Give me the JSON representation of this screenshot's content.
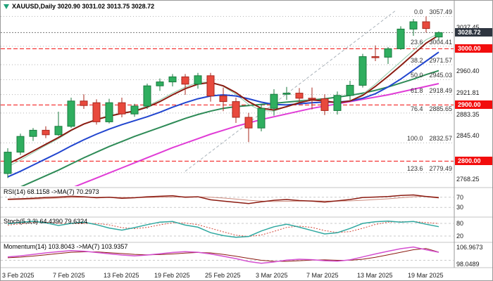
{
  "window": {
    "title": "XAUUSD,Daily 3020.90 3031.02 3013.75 3028.72"
  },
  "colors": {
    "up_fill": "#2fae5f",
    "up_stroke": "#187a3e",
    "down_fill": "#e8493d",
    "down_stroke": "#a8271d",
    "ma_fast": "#8b1a10",
    "ma_mid": "#2145cf",
    "ma_slow": "#2e8b57",
    "ma_long": "#e03cd6",
    "ma_teal": "#8fcbaa",
    "trendline": "#a9b2ba",
    "level_line": "#f20d0d",
    "level_badge": "#f20d0d",
    "current_badge": "#2e3540",
    "fib_line": "#b3b3b3",
    "rsi_line": "#8b1a10",
    "rsi_ma": "#cc8a7d",
    "stoch_main": "#2fa8a0",
    "stoch_signal": "#d24a3c",
    "mom_main": "#d44fd0",
    "mom_ma": "#8b1a10",
    "separator": "#c6c6c6",
    "axis_text": "#1a1a1a"
  },
  "panels": {
    "main": {
      "header": "XAUUSD,Daily 3020.90 3031.02 3013.75 3028.72",
      "y_ticks": [
        "3037.45",
        "2960.40",
        "2921.81",
        "2883.35",
        "2845.40",
        "2768.25"
      ],
      "current_price_badge": "3028.72",
      "level_badges": [
        "3000.00",
        "2900.00",
        "2800.00"
      ],
      "fib_labels": [
        {
          "ratio": "0.0",
          "price": "3057.49"
        },
        {
          "ratio": "23.6",
          "price": "3004.41"
        },
        {
          "ratio": "38.2",
          "price": "2971.57"
        },
        {
          "ratio": "50.0",
          "price": "2945.03"
        },
        {
          "ratio": "61.8",
          "price": "2918.49"
        },
        {
          "ratio": "76.4",
          "price": "2885.65"
        },
        {
          "ratio": "100.0",
          "price": "2832.57"
        },
        {
          "ratio": "123.6",
          "price": "2779.49"
        }
      ]
    },
    "rsi": {
      "header": "RSI(14) 68.1158 ->MA(7) 70.2973",
      "axis_labels": [
        "70",
        "30"
      ],
      "levels": [
        70,
        30
      ]
    },
    "stoch": {
      "header": "Stoch(5,3,3) 64.4390 79.6324",
      "axis_labels": [
        "80",
        "20"
      ],
      "levels": [
        80,
        20
      ]
    },
    "momentum": {
      "header": "Momentum(14) 103.8043 ->MA(7) 103.9357",
      "axis_labels": [
        "106.9673",
        "98.0489"
      ],
      "levels": [
        100
      ]
    }
  },
  "time_axis": {
    "labels": [
      {
        "index": 0,
        "text": "3 Feb 2025"
      },
      {
        "index": 4,
        "text": "7 Feb 2025"
      },
      {
        "index": 8,
        "text": "13 Feb 2025"
      },
      {
        "index": 12,
        "text": "19 Feb 2025"
      },
      {
        "index": 16,
        "text": "25 Feb 2025"
      },
      {
        "index": 20,
        "text": "3 Mar 2025"
      },
      {
        "index": 24,
        "text": "7 Mar 2025"
      },
      {
        "index": 28,
        "text": "13 Mar 2025"
      },
      {
        "index": 32,
        "text": "19 Mar 2025"
      }
    ]
  },
  "chart_data": [
    {
      "type": "candlestick",
      "title": "XAUUSD Daily",
      "ohlc_current": {
        "open": 3020.9,
        "high": 3031.02,
        "low": 3013.75,
        "close": 3028.72
      },
      "ylim": [
        2758,
        3068
      ],
      "current_price": 3028.72,
      "horizontal_levels": [
        3000,
        2900,
        2800
      ],
      "fib": {
        "high": 3057.49,
        "low": 2832.57
      },
      "trendline": {
        "from_index": 14,
        "from_price": 2782,
        "to_index": 30.6,
        "to_price": 3068
      },
      "candles": [
        [
          2778,
          2823,
          2770,
          2816
        ],
        [
          2816,
          2849,
          2811,
          2844
        ],
        [
          2844,
          2859,
          2836,
          2855
        ],
        [
          2855,
          2862,
          2841,
          2847
        ],
        [
          2847,
          2888,
          2845,
          2862
        ],
        [
          2862,
          2913,
          2859,
          2907
        ],
        [
          2907,
          2919,
          2893,
          2899
        ],
        [
          2904,
          2910,
          2865,
          2870
        ],
        [
          2870,
          2911,
          2867,
          2904
        ],
        [
          2904,
          2913,
          2878,
          2884
        ],
        [
          2884,
          2902,
          2879,
          2898
        ],
        [
          2898,
          2938,
          2893,
          2934
        ],
        [
          2934,
          2947,
          2925,
          2941
        ],
        [
          2941,
          2955,
          2933,
          2950
        ],
        [
          2950,
          2955,
          2918,
          2937
        ],
        [
          2937,
          2957,
          2929,
          2952
        ],
        [
          2952,
          2957,
          2906,
          2916
        ],
        [
          2916,
          2931,
          2889,
          2906
        ],
        [
          2906,
          2913,
          2868,
          2878
        ],
        [
          2878,
          2886,
          2834,
          2859
        ],
        [
          2859,
          2901,
          2853,
          2894
        ],
        [
          2894,
          2928,
          2881,
          2919
        ],
        [
          2919,
          2932,
          2909,
          2921
        ],
        [
          2921,
          2930,
          2903,
          2912
        ],
        [
          2912,
          2931,
          2892,
          2911
        ],
        [
          2911,
          2919,
          2882,
          2890
        ],
        [
          2890,
          2924,
          2883,
          2917
        ],
        [
          2917,
          2943,
          2909,
          2935
        ],
        [
          2935,
          2991,
          2931,
          2986
        ],
        [
          2986,
          3006,
          2978,
          2985
        ],
        [
          2985,
          3003,
          2973,
          3000
        ],
        [
          3000,
          3040,
          2998,
          3035
        ],
        [
          3035,
          3053,
          3023,
          3048
        ],
        [
          3048,
          3057.49,
          3029,
          3036
        ],
        [
          3020.9,
          3031.02,
          3013.75,
          3028.72
        ]
      ],
      "overlays": {
        "ma_fast": [
          2795,
          2806,
          2818,
          2830,
          2842,
          2855,
          2866,
          2874,
          2880,
          2885,
          2889,
          2896,
          2906,
          2918,
          2929,
          2937,
          2940,
          2934,
          2922,
          2906,
          2894,
          2891,
          2897,
          2904,
          2909,
          2907,
          2904,
          2907,
          2917,
          2933,
          2951,
          2970,
          2990,
          3010,
          3024
        ],
        "ma_mid": [
          2772,
          2782,
          2793,
          2804,
          2815,
          2827,
          2838,
          2848,
          2857,
          2865,
          2872,
          2879,
          2887,
          2896,
          2904,
          2911,
          2916,
          2918,
          2916,
          2911,
          2905,
          2901,
          2900,
          2902,
          2904,
          2905,
          2905,
          2907,
          2912,
          2920,
          2932,
          2946,
          2962,
          2978,
          2994
        ],
        "ma_slow": [
          2745,
          2754,
          2764,
          2774,
          2784,
          2795,
          2806,
          2816,
          2826,
          2835,
          2844,
          2852,
          2860,
          2868,
          2876,
          2883,
          2889,
          2894,
          2897,
          2899,
          2901,
          2903,
          2905,
          2907,
          2909,
          2911,
          2914,
          2917,
          2921,
          2926,
          2932,
          2939,
          2946,
          2954,
          2961
        ],
        "ma_long": [
          2708,
          2716,
          2725,
          2734,
          2743,
          2752,
          2761,
          2770,
          2779,
          2788,
          2797,
          2806,
          2815,
          2824,
          2832,
          2840,
          2848,
          2855,
          2862,
          2868,
          2874,
          2879,
          2884,
          2889,
          2894,
          2898,
          2902,
          2906,
          2910,
          2914,
          2918,
          2923,
          2928,
          2933,
          2938
        ],
        "ma_teal": [
          2790,
          2802,
          2815,
          2828,
          2840,
          2854,
          2866,
          2875,
          2881,
          2886,
          2890,
          2898,
          2909,
          2921,
          2932,
          2940,
          2941,
          2933,
          2919,
          2901,
          2890,
          2889,
          2897,
          2905,
          2910,
          2907,
          2903,
          2907,
          2919,
          2937,
          2957,
          2977,
          2997,
          3016,
          3027
        ]
      }
    },
    {
      "type": "line",
      "name": "RSI(14)",
      "ylim": [
        0,
        100
      ],
      "value": 68.1158,
      "ma_value": 70.2973,
      "values": [
        62,
        64,
        66,
        69,
        71,
        74,
        72,
        68,
        70,
        66,
        68,
        72,
        74,
        76,
        70,
        72,
        60,
        55,
        50,
        45,
        52,
        58,
        61,
        57,
        55,
        51,
        56,
        61,
        69,
        71,
        73,
        77,
        79,
        73,
        68.1
      ],
      "ma_values": [
        60,
        61,
        63,
        65,
        67,
        69,
        70,
        70,
        70,
        69,
        69,
        69,
        70,
        71,
        72,
        72,
        70,
        67,
        63,
        58,
        55,
        53,
        54,
        55,
        56,
        55,
        55,
        56,
        58,
        61,
        64,
        68,
        72,
        74,
        70.3
      ]
    },
    {
      "type": "line",
      "name": "Stoch(5,3,3)",
      "ylim": [
        0,
        100
      ],
      "value": 64.439,
      "signal_value": 79.6324,
      "values": [
        78,
        85,
        90,
        83,
        70,
        80,
        86,
        74,
        58,
        48,
        60,
        74,
        86,
        89,
        72,
        62,
        36,
        22,
        14,
        18,
        44,
        64,
        76,
        62,
        46,
        30,
        36,
        56,
        80,
        88,
        91,
        86,
        89,
        76,
        64.4
      ],
      "signal_values": [
        72,
        78,
        84,
        86,
        81,
        78,
        79,
        80,
        73,
        60,
        55,
        61,
        73,
        83,
        82,
        74,
        57,
        40,
        24,
        18,
        25,
        42,
        61,
        67,
        61,
        46,
        37,
        41,
        57,
        75,
        86,
        88,
        89,
        84,
        79.6
      ]
    },
    {
      "type": "line",
      "name": "Momentum(14)",
      "ylim": [
        97.5,
        107.5
      ],
      "value": 103.8043,
      "ma_value": 103.9357,
      "values": [
        101.6,
        102.1,
        102.8,
        103.5,
        104.1,
        104.6,
        104.3,
        103.7,
        103.1,
        102.5,
        102.1,
        102.5,
        103.1,
        103.7,
        104.1,
        103.8,
        103.0,
        101.9,
        100.8,
        99.4,
        98.6,
        99.2,
        100.1,
        100.5,
        100.3,
        99.8,
        99.6,
        100.2,
        101.6,
        103.0,
        104.3,
        105.5,
        106.3,
        105.0,
        103.8
      ],
      "ma_values": [
        101.2,
        101.5,
        102.0,
        102.6,
        103.2,
        103.8,
        104.0,
        104.0,
        103.6,
        103.2,
        102.8,
        102.6,
        102.7,
        103.0,
        103.4,
        103.7,
        103.5,
        102.8,
        101.9,
        100.9,
        100.0,
        99.5,
        99.5,
        99.8,
        100.1,
        100.2,
        100.0,
        100.0,
        100.5,
        101.4,
        102.6,
        103.8,
        105.0,
        105.6,
        103.9
      ]
    }
  ]
}
